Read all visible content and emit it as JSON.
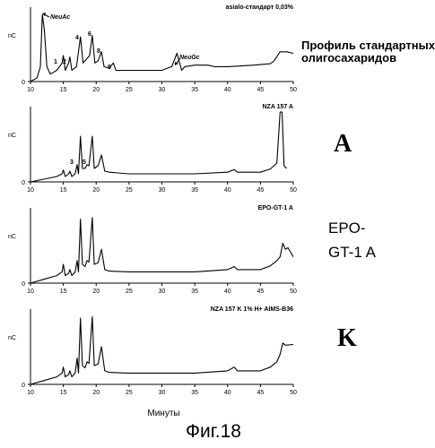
{
  "figure": {
    "caption": "Фиг.18",
    "profile_label": "Профиль стандартных олигосахаридов",
    "letter_a": "A",
    "epo_line1": "EPO-",
    "epo_line2": "GT-1 A",
    "letter_k": "K"
  },
  "chart_data": [
    {
      "type": "line",
      "title": "asialo-стандарт 0,03%",
      "ylabel": "nC",
      "xlabel": "",
      "xlim": [
        10,
        50
      ],
      "xticks": [
        10,
        15,
        20,
        25,
        30,
        35,
        40,
        45,
        50
      ],
      "yticks": [
        0
      ],
      "grid": false,
      "x": [
        10,
        11,
        11.5,
        11.8,
        12.1,
        12.5,
        13,
        14,
        14.8,
        15,
        15.3,
        15.8,
        16,
        16.3,
        17,
        17.6,
        18,
        18.5,
        19,
        19.4,
        19.8,
        20.3,
        20.8,
        21.2,
        22,
        22.6,
        23,
        25,
        28,
        30,
        31.5,
        32.3,
        33,
        33.5,
        35,
        37,
        38,
        40,
        44,
        46.5,
        47,
        48,
        48.5,
        49,
        50
      ],
      "y": [
        0,
        0.5,
        2,
        9,
        7,
        2,
        1,
        1.5,
        2.5,
        3.5,
        1.5,
        2.5,
        3.3,
        1.5,
        2,
        6,
        2.5,
        3,
        3.5,
        6.2,
        2.5,
        2.8,
        4,
        2,
        1.8,
        2.5,
        1.5,
        1.5,
        1.5,
        1.5,
        2,
        3.8,
        1.5,
        2,
        2.2,
        2.2,
        2,
        2,
        2.2,
        2.4,
        2.7,
        4,
        4,
        4,
        3.8
      ],
      "annotations": [
        "NeuAc",
        "1",
        "2",
        "4",
        "6",
        "8",
        "9",
        "NeuGc"
      ]
    },
    {
      "type": "line",
      "title": "NZA 157 A",
      "ylabel": "nC",
      "xlabel": "",
      "xlim": [
        10,
        50
      ],
      "xticks": [
        10,
        15,
        20,
        25,
        30,
        35,
        40,
        45,
        50
      ],
      "yticks": [
        0
      ],
      "grid": false,
      "x": [
        10,
        12,
        14,
        14.8,
        15,
        15.3,
        15.8,
        16,
        16.3,
        16.8,
        17.1,
        17.3,
        17.6,
        17.9,
        18.3,
        18.6,
        18.9,
        19.4,
        19.7,
        20.3,
        20.8,
        21.3,
        22,
        25,
        28,
        30,
        35,
        40,
        41,
        41.5,
        45,
        46.5,
        47.5,
        48,
        48.3,
        48.6,
        49
      ],
      "y": [
        0,
        0.5,
        1,
        1.5,
        2.2,
        1,
        1.5,
        2,
        1,
        1.5,
        3.2,
        1.5,
        8.5,
        2.5,
        2.5,
        3.2,
        3,
        8.5,
        2.5,
        3,
        5,
        2,
        1.8,
        1.5,
        1.5,
        1.5,
        1.5,
        1.8,
        2.3,
        1.8,
        1.8,
        2.4,
        3.5,
        13,
        13,
        3,
        2.5
      ],
      "annotations": [
        "3",
        "5"
      ]
    },
    {
      "type": "line",
      "title": "EPO-GT-1 A",
      "ylabel": "nC",
      "xlabel": "",
      "xlim": [
        10,
        50
      ],
      "xticks": [
        10,
        15,
        20,
        25,
        30,
        35,
        40,
        45,
        50
      ],
      "yticks": [
        0
      ],
      "grid": false,
      "x": [
        10,
        12,
        14,
        14.8,
        15,
        15.3,
        15.8,
        16,
        16.3,
        16.8,
        17.1,
        17.3,
        17.6,
        17.9,
        18.3,
        18.6,
        18.9,
        19.4,
        19.7,
        20.3,
        20.8,
        21.3,
        22,
        25,
        30,
        35,
        40,
        41,
        41.5,
        45,
        46.5,
        47.5,
        48,
        48.4,
        48.8,
        49.2,
        50
      ],
      "y": [
        0,
        0.5,
        1,
        1.5,
        2.5,
        1,
        1.3,
        1.8,
        1,
        1.5,
        3,
        1.5,
        8.5,
        2.5,
        2.2,
        3,
        2.8,
        8.7,
        2.5,
        2.7,
        4.5,
        1.8,
        1.6,
        1.5,
        1.5,
        1.5,
        1.8,
        2.2,
        1.8,
        1.8,
        2.3,
        3,
        3.5,
        5.3,
        4.5,
        4.7,
        3.5
      ],
      "annotations": []
    },
    {
      "type": "line",
      "title": "NZA 157 K 1% H+ AIMS-B36",
      "ylabel": "nC",
      "xlabel": "Минуты",
      "xlim": [
        10,
        50
      ],
      "xticks": [
        10,
        15,
        20,
        25,
        30,
        35,
        40,
        45,
        50
      ],
      "yticks": [
        0
      ],
      "grid": false,
      "x": [
        10,
        12,
        14,
        14.8,
        15,
        15.3,
        15.8,
        16,
        16.3,
        16.8,
        17.1,
        17.3,
        17.6,
        17.9,
        18.3,
        18.6,
        18.9,
        19.4,
        19.7,
        20.3,
        20.8,
        21.3,
        22,
        25,
        30,
        35,
        40,
        41,
        41.5,
        45,
        46.5,
        47.5,
        48,
        48.4,
        48.8,
        50
      ],
      "y": [
        0,
        0.5,
        1,
        1.5,
        2.3,
        1,
        1.3,
        1.8,
        1,
        1.5,
        3.5,
        1.5,
        8.8,
        2.5,
        2.2,
        3,
        2.8,
        9,
        2.5,
        2.7,
        5,
        1.8,
        1.6,
        1.5,
        1.5,
        1.5,
        1.8,
        2.3,
        1.8,
        1.8,
        2.3,
        3,
        4,
        5.5,
        5.2,
        5.3
      ],
      "annotations": []
    }
  ]
}
